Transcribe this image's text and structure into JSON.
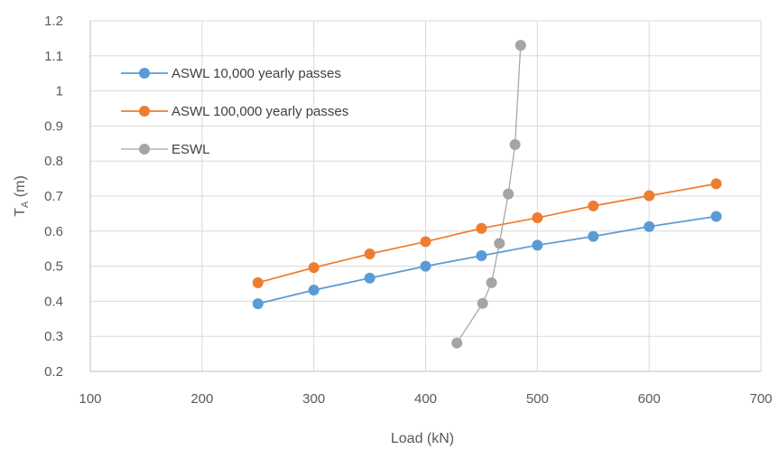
{
  "chart_data": {
    "type": "scatter",
    "xlabel": "Load (kN)",
    "ylabel_main": "T",
    "ylabel_sub": "A",
    "ylabel_unit": " (m)",
    "xlim": [
      100,
      700
    ],
    "ylim": [
      0.2,
      1.2
    ],
    "x_ticks": [
      "100",
      "200",
      "300",
      "400",
      "500",
      "600",
      "700"
    ],
    "y_ticks": [
      "0.2",
      "0.3",
      "0.4",
      "0.5",
      "0.6",
      "0.7",
      "0.8",
      "0.9",
      "1",
      "1.1",
      "1.2"
    ],
    "grid": true,
    "legend_position": "top-left",
    "series": [
      {
        "name": "ASWL 10,000 yearly passes",
        "color": "#5b9bd5",
        "x": [
          250,
          300,
          350,
          400,
          450,
          500,
          550,
          600,
          660
        ],
        "y": [
          0.393,
          0.432,
          0.466,
          0.5,
          0.53,
          0.56,
          0.585,
          0.613,
          0.642
        ]
      },
      {
        "name": "ASWL 100,000 yearly passes",
        "color": "#ed7d31",
        "x": [
          250,
          300,
          350,
          400,
          450,
          500,
          550,
          600,
          660
        ],
        "y": [
          0.453,
          0.496,
          0.535,
          0.57,
          0.608,
          0.638,
          0.672,
          0.701,
          0.735
        ]
      },
      {
        "name": "ESWL",
        "color": "#a5a5a5",
        "x": [
          428,
          451,
          459,
          466,
          474,
          480,
          485
        ],
        "y": [
          0.281,
          0.394,
          0.453,
          0.565,
          0.706,
          0.847,
          1.13
        ]
      }
    ]
  }
}
